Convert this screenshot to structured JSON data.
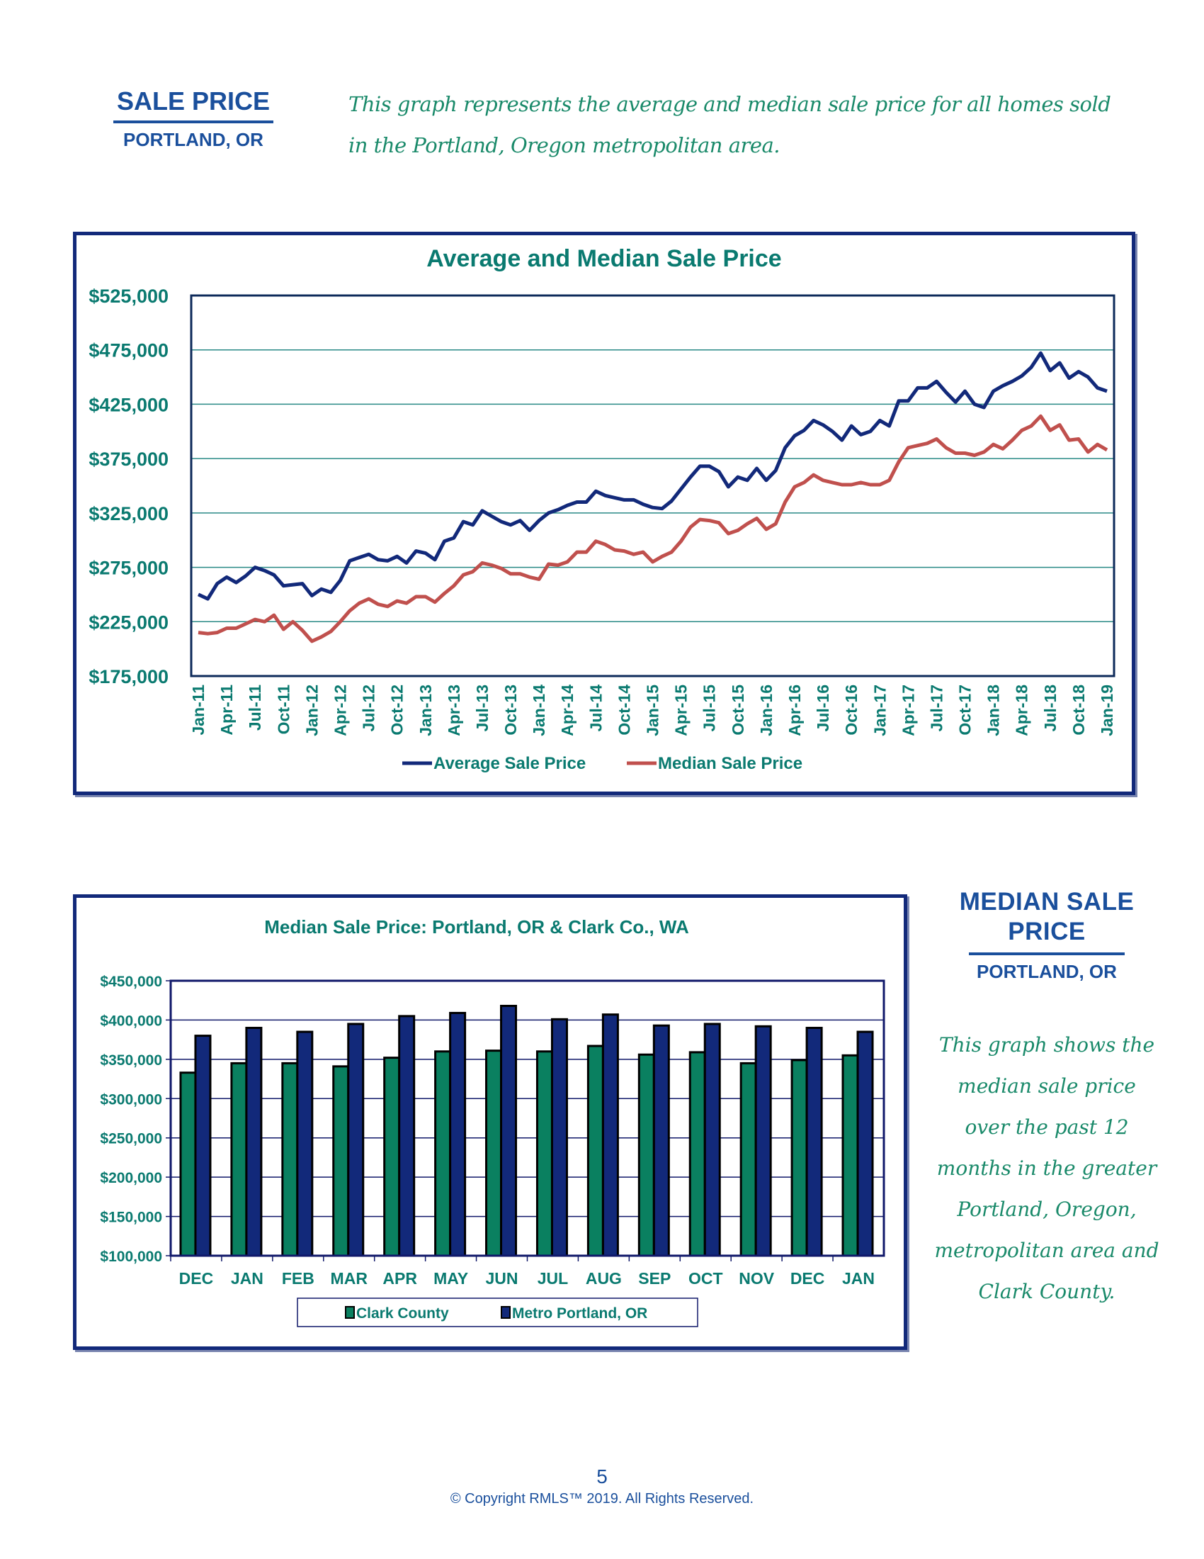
{
  "header": {
    "title": "SALE PRICE",
    "subtitle": "PORTLAND, OR",
    "description": "This graph represents the average and median sale price for all homes sold in the Portland, Oregon metropolitan area."
  },
  "side_panel": {
    "title": "MEDIAN SALE PRICE",
    "subtitle": "PORTLAND, OR",
    "description": "This graph shows the median sale price over the past 12 months in the greater Portland, Oregon, metropolitan area and Clark County."
  },
  "footer": {
    "page_number": "5",
    "copyright": "© Copyright RMLS™ 2019. All Rights Reserved."
  },
  "colors": {
    "average": "#12297a",
    "median": "#c0504d",
    "clark": "#0a8060",
    "portland": "#12297a",
    "axis_text": "#0a7a70",
    "frame": "#12297a"
  },
  "chart_data": [
    {
      "type": "line",
      "title": "Average and Median Sale Price",
      "xlabel": "",
      "ylabel": "",
      "ylim": [
        175000,
        525000
      ],
      "yticks": [
        175000,
        225000,
        275000,
        325000,
        375000,
        425000,
        475000,
        525000
      ],
      "ytick_labels": [
        "$175,000",
        "$225,000",
        "$275,000",
        "$325,000",
        "$375,000",
        "$425,000",
        "$475,000",
        "$525,000"
      ],
      "grid": true,
      "legend_position": "bottom",
      "x_tick_labels": [
        "Jan-11",
        "Apr-11",
        "Jul-11",
        "Oct-11",
        "Jan-12",
        "Apr-12",
        "Jul-12",
        "Oct-12",
        "Jan-13",
        "Apr-13",
        "Jul-13",
        "Oct-13",
        "Jan-14",
        "Apr-14",
        "Jul-14",
        "Oct-14",
        "Jan-15",
        "Apr-15",
        "Jul-15",
        "Oct-15",
        "Jan-16",
        "Apr-16",
        "Jul-16",
        "Oct-16",
        "Jan-17",
        "Apr-17",
        "Jul-17",
        "Oct-17",
        "Jan-18",
        "Apr-18",
        "Jul-18",
        "Oct-18",
        "Jan-19"
      ],
      "series": [
        {
          "name": "Average Sale Price",
          "values": [
            250000,
            246000,
            260000,
            266000,
            261000,
            267000,
            275000,
            272000,
            268000,
            258000,
            259000,
            260000,
            249000,
            255000,
            252000,
            263000,
            281000,
            284000,
            287000,
            282000,
            281000,
            285000,
            279000,
            290000,
            288000,
            282000,
            299000,
            302000,
            317000,
            314000,
            327000,
            322000,
            317000,
            314000,
            318000,
            309000,
            318000,
            325000,
            328000,
            332000,
            335000,
            335000,
            345000,
            341000,
            339000,
            337000,
            337000,
            333000,
            330000,
            329000,
            336000,
            347000,
            358000,
            368000,
            368000,
            363000,
            349000,
            358000,
            355000,
            366000,
            355000,
            364000,
            385000,
            396000,
            401000,
            410000,
            406000,
            400000,
            392000,
            405000,
            397000,
            400000,
            410000,
            405000,
            428000,
            428000,
            440000,
            440000,
            446000,
            436000,
            427000,
            437000,
            425000,
            422000,
            437000,
            442000,
            446000,
            451000,
            459000,
            472000,
            456000,
            463000,
            449000,
            455000,
            450000,
            440000,
            437000
          ],
          "color": "#12297a"
        },
        {
          "name": "Median Sale Price",
          "values": [
            215000,
            214000,
            215000,
            219000,
            219000,
            223000,
            227000,
            225000,
            231000,
            218000,
            225000,
            217000,
            207000,
            211000,
            216000,
            225000,
            235000,
            242000,
            246000,
            241000,
            239000,
            244000,
            242000,
            248000,
            248000,
            243000,
            251000,
            258000,
            268000,
            271000,
            279000,
            277000,
            274000,
            269000,
            269000,
            266000,
            264000,
            278000,
            277000,
            280000,
            289000,
            289000,
            299000,
            296000,
            291000,
            290000,
            287000,
            289000,
            280000,
            285000,
            289000,
            299000,
            312000,
            319000,
            318000,
            316000,
            306000,
            309000,
            315000,
            320000,
            310000,
            315000,
            335000,
            349000,
            353000,
            360000,
            355000,
            353000,
            351000,
            351000,
            353000,
            351000,
            351000,
            355000,
            372000,
            385000,
            387000,
            389000,
            393000,
            385000,
            380000,
            380000,
            378000,
            381000,
            388000,
            384000,
            392000,
            401000,
            405000,
            414000,
            401000,
            406000,
            392000,
            393000,
            381000,
            388000,
            383000
          ],
          "color": "#c0504d"
        }
      ]
    },
    {
      "type": "bar",
      "title": "Median Sale Price: Portland, OR & Clark Co., WA",
      "xlabel": "",
      "ylabel": "",
      "ylim": [
        100000,
        450000
      ],
      "yticks": [
        100000,
        150000,
        200000,
        250000,
        300000,
        350000,
        400000,
        450000
      ],
      "ytick_labels": [
        "$100,000",
        "$150,000",
        "$200,000",
        "$250,000",
        "$300,000",
        "$350,000",
        "$400,000",
        "$450,000"
      ],
      "grid": true,
      "legend_position": "bottom",
      "categories": [
        "DEC",
        "JAN",
        "FEB",
        "MAR",
        "APR",
        "MAY",
        "JUN",
        "JUL",
        "AUG",
        "SEP",
        "OCT",
        "NOV",
        "DEC",
        "JAN"
      ],
      "series": [
        {
          "name": "Clark County",
          "values": [
            333000,
            345000,
            345000,
            341000,
            352000,
            360000,
            361000,
            360000,
            367000,
            356000,
            359000,
            345000,
            349000,
            355000
          ],
          "color": "#0a8060"
        },
        {
          "name": "Metro Portland, OR",
          "values": [
            380000,
            390000,
            385000,
            395000,
            405000,
            409000,
            418000,
            401000,
            407000,
            393000,
            395000,
            392000,
            390000,
            385000
          ],
          "color": "#12297a"
        }
      ]
    }
  ]
}
